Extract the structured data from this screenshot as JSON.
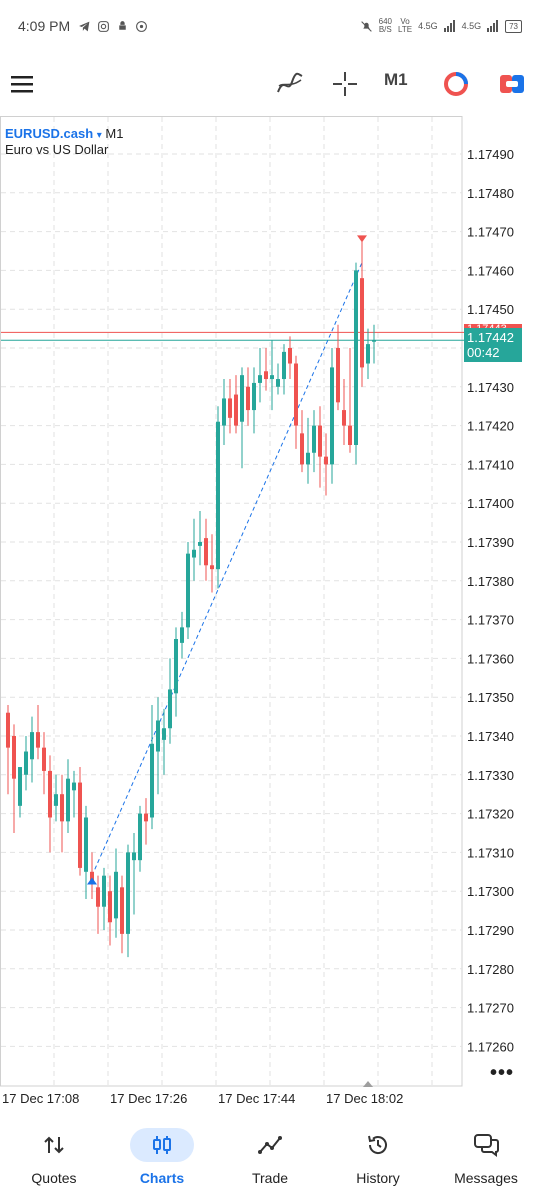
{
  "status_bar": {
    "time": "4:09 PM",
    "net_speed_value": "640",
    "net_speed_unit": "B/S",
    "volte_top": "Vo",
    "volte_bottom": "LTE",
    "signal1": "4.5G",
    "signal2": "4.5G",
    "battery": "73"
  },
  "toolbar": {
    "timeframe": "M1"
  },
  "chart": {
    "symbol": "EURUSD.cash",
    "symbol_arrow": "▾",
    "timeframe": "M1",
    "description": "Euro vs US Dollar",
    "bid_price": "1.17442",
    "countdown": "00:42",
    "ask_label": "1.17443",
    "more": "•••"
  },
  "chart_data": {
    "type": "candlestick",
    "symbol": "EURUSD.cash",
    "timeframe": "M1",
    "y_ticks": [
      "1.17490",
      "1.17480",
      "1.17470",
      "1.17460",
      "1.17450",
      "1.17440",
      "1.17430",
      "1.17420",
      "1.17410",
      "1.17400",
      "1.17390",
      "1.17380",
      "1.17370",
      "1.17360",
      "1.17350",
      "1.17340",
      "1.17330",
      "1.17320",
      "1.17310",
      "1.17300",
      "1.17290",
      "1.17280",
      "1.17270",
      "1.17260"
    ],
    "x_ticks": [
      "17 Dec 17:08",
      "17 Dec 17:26",
      "17 Dec 17:44",
      "17 Dec 18:02"
    ],
    "ylim": [
      1.17252,
      1.17502
    ],
    "bid": 1.17442,
    "ask": 1.17443,
    "colors": {
      "up": "#26a69a",
      "down": "#ef5350",
      "bid_line": "#26a69a",
      "ask_line": "#ef5350",
      "trend": "#1b73e8"
    },
    "candles": [
      {
        "o": 1.17346,
        "h": 1.17348,
        "l": 1.17325,
        "c": 1.17337
      },
      {
        "o": 1.1734,
        "h": 1.17343,
        "l": 1.17315,
        "c": 1.17329
      },
      {
        "o": 1.17322,
        "h": 1.17332,
        "l": 1.17319,
        "c": 1.17332
      },
      {
        "o": 1.1733,
        "h": 1.1734,
        "l": 1.17326,
        "c": 1.17336
      },
      {
        "o": 1.17334,
        "h": 1.17345,
        "l": 1.17328,
        "c": 1.17341
      },
      {
        "o": 1.17341,
        "h": 1.17348,
        "l": 1.17334,
        "c": 1.17337
      },
      {
        "o": 1.17337,
        "h": 1.17341,
        "l": 1.17325,
        "c": 1.17331
      },
      {
        "o": 1.17331,
        "h": 1.17335,
        "l": 1.1731,
        "c": 1.17319
      },
      {
        "o": 1.17322,
        "h": 1.1733,
        "l": 1.17318,
        "c": 1.17325
      },
      {
        "o": 1.17325,
        "h": 1.1733,
        "l": 1.1731,
        "c": 1.17318
      },
      {
        "o": 1.17318,
        "h": 1.17334,
        "l": 1.17315,
        "c": 1.17329
      },
      {
        "o": 1.17326,
        "h": 1.17331,
        "l": 1.17319,
        "c": 1.17328
      },
      {
        "o": 1.17328,
        "h": 1.17332,
        "l": 1.17304,
        "c": 1.17306
      },
      {
        "o": 1.17305,
        "h": 1.17322,
        "l": 1.17298,
        "c": 1.17319
      },
      {
        "o": 1.17305,
        "h": 1.1731,
        "l": 1.17298,
        "c": 1.17302
      },
      {
        "o": 1.17301,
        "h": 1.17304,
        "l": 1.17289,
        "c": 1.17296
      },
      {
        "o": 1.17296,
        "h": 1.17306,
        "l": 1.1729,
        "c": 1.17304
      },
      {
        "o": 1.173,
        "h": 1.17304,
        "l": 1.17286,
        "c": 1.17292
      },
      {
        "o": 1.17293,
        "h": 1.17311,
        "l": 1.17288,
        "c": 1.17305
      },
      {
        "o": 1.17301,
        "h": 1.17304,
        "l": 1.17284,
        "c": 1.17289
      },
      {
        "o": 1.17289,
        "h": 1.17312,
        "l": 1.17283,
        "c": 1.1731
      },
      {
        "o": 1.17308,
        "h": 1.17315,
        "l": 1.17294,
        "c": 1.1731
      },
      {
        "o": 1.17308,
        "h": 1.17322,
        "l": 1.17305,
        "c": 1.1732
      },
      {
        "o": 1.1732,
        "h": 1.17324,
        "l": 1.17312,
        "c": 1.17318
      },
      {
        "o": 1.17319,
        "h": 1.17348,
        "l": 1.17316,
        "c": 1.17338
      },
      {
        "o": 1.17336,
        "h": 1.1735,
        "l": 1.17325,
        "c": 1.17344
      },
      {
        "o": 1.17339,
        "h": 1.17347,
        "l": 1.1733,
        "c": 1.17342
      },
      {
        "o": 1.17342,
        "h": 1.1736,
        "l": 1.17338,
        "c": 1.17352
      },
      {
        "o": 1.17351,
        "h": 1.17368,
        "l": 1.17345,
        "c": 1.17365
      },
      {
        "o": 1.17364,
        "h": 1.17372,
        "l": 1.1736,
        "c": 1.17368
      },
      {
        "o": 1.17368,
        "h": 1.1739,
        "l": 1.17365,
        "c": 1.17387
      },
      {
        "o": 1.17386,
        "h": 1.17396,
        "l": 1.1738,
        "c": 1.17388
      },
      {
        "o": 1.17389,
        "h": 1.17398,
        "l": 1.17384,
        "c": 1.1739
      },
      {
        "o": 1.17391,
        "h": 1.17396,
        "l": 1.1738,
        "c": 1.17384
      },
      {
        "o": 1.17384,
        "h": 1.17392,
        "l": 1.17377,
        "c": 1.17383
      },
      {
        "o": 1.17383,
        "h": 1.17425,
        "l": 1.17378,
        "c": 1.17421
      },
      {
        "o": 1.1742,
        "h": 1.17432,
        "l": 1.17415,
        "c": 1.17427
      },
      {
        "o": 1.17427,
        "h": 1.17432,
        "l": 1.17418,
        "c": 1.17422
      },
      {
        "o": 1.17428,
        "h": 1.17433,
        "l": 1.17418,
        "c": 1.1742
      },
      {
        "o": 1.17421,
        "h": 1.17435,
        "l": 1.17409,
        "c": 1.17433
      },
      {
        "o": 1.1743,
        "h": 1.17435,
        "l": 1.1742,
        "c": 1.17424
      },
      {
        "o": 1.17424,
        "h": 1.17435,
        "l": 1.17418,
        "c": 1.17431
      },
      {
        "o": 1.17431,
        "h": 1.1744,
        "l": 1.17426,
        "c": 1.17433
      },
      {
        "o": 1.17434,
        "h": 1.1744,
        "l": 1.17429,
        "c": 1.17432
      },
      {
        "o": 1.17432,
        "h": 1.17442,
        "l": 1.17424,
        "c": 1.17433
      },
      {
        "o": 1.1743,
        "h": 1.17436,
        "l": 1.17428,
        "c": 1.17432
      },
      {
        "o": 1.17432,
        "h": 1.17441,
        "l": 1.17428,
        "c": 1.17439
      },
      {
        "o": 1.1744,
        "h": 1.17443,
        "l": 1.17432,
        "c": 1.17436
      },
      {
        "o": 1.17436,
        "h": 1.17438,
        "l": 1.17414,
        "c": 1.1742
      },
      {
        "o": 1.17418,
        "h": 1.17424,
        "l": 1.17408,
        "c": 1.1741
      },
      {
        "o": 1.1741,
        "h": 1.17422,
        "l": 1.17405,
        "c": 1.17413
      },
      {
        "o": 1.17413,
        "h": 1.17424,
        "l": 1.17408,
        "c": 1.1742
      },
      {
        "o": 1.1742,
        "h": 1.17425,
        "l": 1.17404,
        "c": 1.17412
      },
      {
        "o": 1.17412,
        "h": 1.17418,
        "l": 1.17402,
        "c": 1.1741
      },
      {
        "o": 1.1741,
        "h": 1.1744,
        "l": 1.17405,
        "c": 1.17435
      },
      {
        "o": 1.1744,
        "h": 1.17446,
        "l": 1.17424,
        "c": 1.17426
      },
      {
        "o": 1.17424,
        "h": 1.17432,
        "l": 1.17415,
        "c": 1.1742
      },
      {
        "o": 1.1742,
        "h": 1.1744,
        "l": 1.17413,
        "c": 1.17415
      },
      {
        "o": 1.17415,
        "h": 1.17462,
        "l": 1.1741,
        "c": 1.1746
      },
      {
        "o": 1.17458,
        "h": 1.17468,
        "l": 1.1743,
        "c": 1.17435
      },
      {
        "o": 1.17436,
        "h": 1.17445,
        "l": 1.17432,
        "c": 1.17441
      },
      {
        "o": 1.17442,
        "h": 1.17446,
        "l": 1.17436,
        "c": 1.17442
      }
    ],
    "trend_line": {
      "from_index": 14,
      "from": 1.17304,
      "to_index": 59,
      "to": 1.17462
    },
    "markers": [
      {
        "type": "buy",
        "index": 14,
        "price": 1.17303
      },
      {
        "type": "sell",
        "index": 59,
        "price": 1.17468
      }
    ]
  },
  "nav": {
    "items": [
      {
        "label": "Quotes"
      },
      {
        "label": "Charts"
      },
      {
        "label": "Trade"
      },
      {
        "label": "History"
      },
      {
        "label": "Messages"
      }
    ]
  }
}
